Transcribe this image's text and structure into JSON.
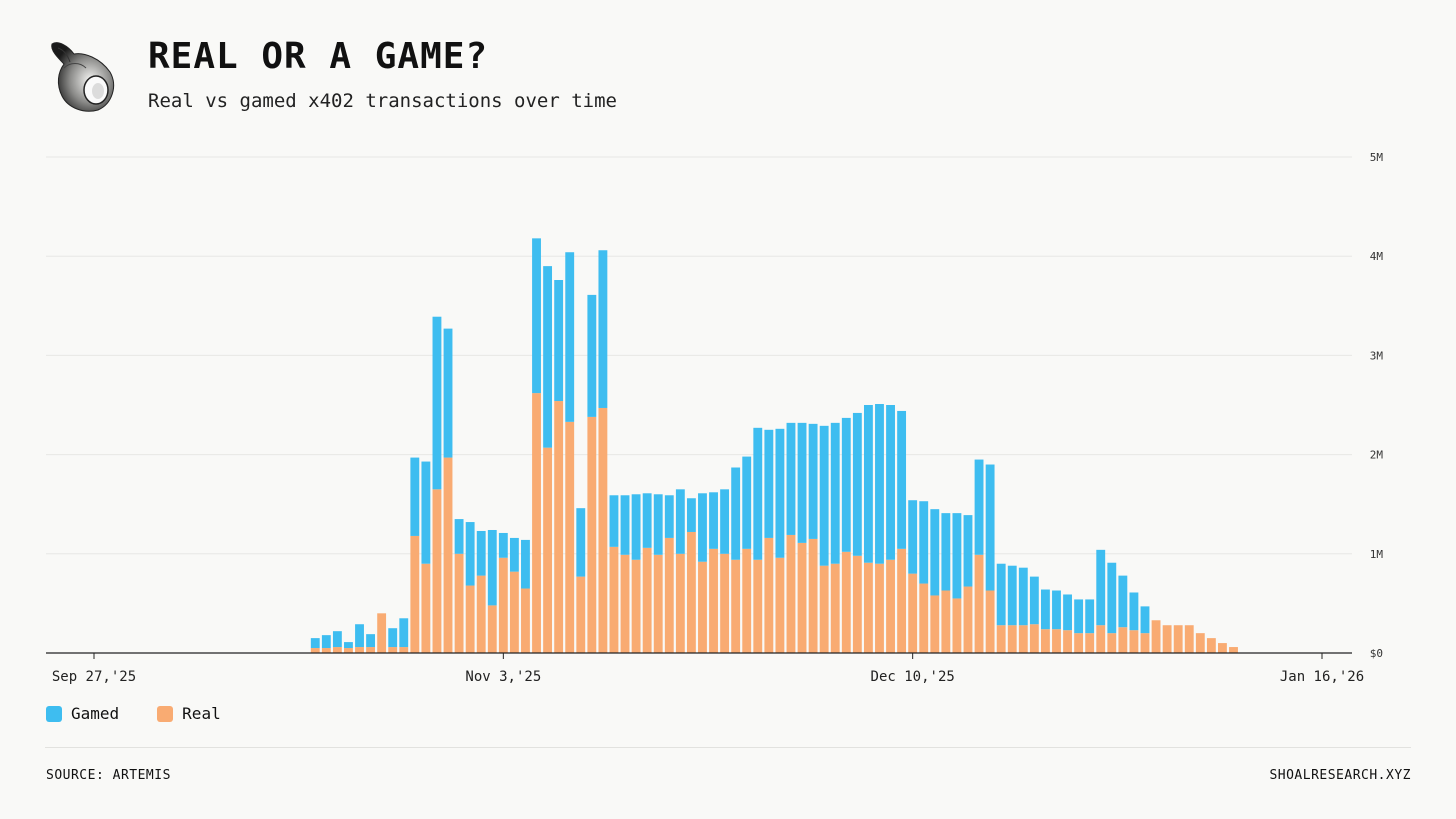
{
  "header": {
    "title": "REAL OR A GAME?",
    "subtitle": "Real vs gamed x402 transactions over time"
  },
  "footer": {
    "source": "SOURCE: ARTEMIS",
    "site": "SHOALRESEARCH.XYZ"
  },
  "colors": {
    "gamed": "#3ebdf0",
    "real": "#f9ab72",
    "grid": "#e8e8e5",
    "axis": "#222222"
  },
  "chart_data": {
    "type": "bar",
    "stacked": true,
    "title": "REAL OR A GAME?",
    "subtitle": "Real vs gamed x402 transactions over time",
    "x_tick_labels": [
      "Sep 27,'25",
      "Nov 3,'25",
      "Dec 10,'25",
      "Jan 16,'26"
    ],
    "y_tick_labels": [
      "$0",
      "1M",
      "2M",
      "3M",
      "4M",
      "5M"
    ],
    "y_ticks": [
      0,
      1000000,
      2000000,
      3000000,
      4000000,
      5000000
    ],
    "ylim": [
      0,
      5000000
    ],
    "x_range_days": [
      0,
      111
    ],
    "legend": [
      "Gamed",
      "Real"
    ],
    "legend_position": "bottom-left",
    "grid": true,
    "start_day": 20,
    "series": [
      {
        "name": "Real",
        "values": [
          50000,
          50000,
          60000,
          50000,
          60000,
          60000,
          400000,
          60000,
          60000,
          1180000,
          900000,
          1650000,
          1970000,
          1000000,
          680000,
          780000,
          480000,
          960000,
          820000,
          650000,
          2620000,
          2070000,
          2540000,
          2330000,
          770000,
          2380000,
          2470000,
          1070000,
          990000,
          940000,
          1060000,
          990000,
          1160000,
          1000000,
          1220000,
          920000,
          1050000,
          1000000,
          940000,
          1050000,
          940000,
          1160000,
          960000,
          1190000,
          1110000,
          1150000,
          880000,
          900000,
          1020000,
          980000,
          910000,
          900000,
          940000,
          1050000,
          800000,
          700000,
          580000,
          630000,
          550000,
          670000,
          990000,
          630000,
          280000,
          280000,
          280000,
          290000,
          240000,
          240000,
          230000,
          200000,
          200000,
          280000,
          200000,
          260000,
          230000,
          200000,
          330000,
          280000,
          280000,
          280000,
          200000,
          150000,
          100000,
          60000
        ]
      },
      {
        "name": "Gamed",
        "values": [
          100000,
          130000,
          160000,
          60000,
          230000,
          130000,
          0,
          190000,
          290000,
          790000,
          1030000,
          1740000,
          1300000,
          350000,
          640000,
          450000,
          760000,
          250000,
          340000,
          490000,
          1560000,
          1830000,
          1220000,
          1710000,
          690000,
          1230000,
          1590000,
          520000,
          600000,
          660000,
          550000,
          610000,
          430000,
          650000,
          340000,
          690000,
          570000,
          650000,
          930000,
          930000,
          1330000,
          1090000,
          1300000,
          1130000,
          1210000,
          1160000,
          1410000,
          1420000,
          1350000,
          1440000,
          1590000,
          1610000,
          1560000,
          1390000,
          740000,
          830000,
          870000,
          780000,
          860000,
          720000,
          960000,
          1270000,
          620000,
          600000,
          580000,
          480000,
          400000,
          390000,
          360000,
          340000,
          340000,
          760000,
          710000,
          520000,
          380000,
          270000,
          0,
          0,
          0,
          0,
          0,
          0,
          0,
          0
        ]
      }
    ]
  }
}
